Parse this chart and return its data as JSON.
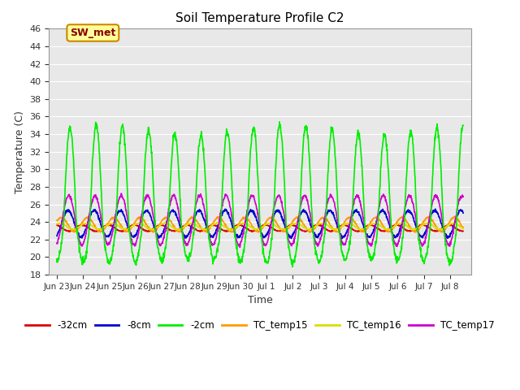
{
  "title": "Soil Temperature Profile C2",
  "xlabel": "Time",
  "ylabel": "Temperature (C)",
  "ylim": [
    18,
    46
  ],
  "yticks": [
    18,
    20,
    22,
    24,
    26,
    28,
    30,
    32,
    34,
    36,
    38,
    40,
    42,
    44,
    46
  ],
  "fig_bg_color": "#ffffff",
  "plot_bg_color": "#e8e8e8",
  "annotation_label": "SW_met",
  "annotation_bg": "#ffff99",
  "annotation_border": "#cc8800",
  "annotation_text_color": "#880000",
  "series": {
    "-32cm": {
      "color": "#dd0000",
      "linewidth": 1.2
    },
    "-8cm": {
      "color": "#0000cc",
      "linewidth": 1.2
    },
    "-2cm": {
      "color": "#00ee00",
      "linewidth": 1.2
    },
    "TC_temp15": {
      "color": "#ff9900",
      "linewidth": 1.2
    },
    "TC_temp16": {
      "color": "#dddd00",
      "linewidth": 1.2
    },
    "TC_temp17": {
      "color": "#cc00cc",
      "linewidth": 1.2
    }
  },
  "num_days": 15.5,
  "ppd": 96,
  "tick_labels": [
    "Jun 23",
    "Jun 24",
    "Jun 25",
    "Jun 26",
    "Jun 27",
    "Jun 28",
    "Jun 29",
    "Jun 30",
    "Jul 1",
    "Jul 2",
    "Jul 3",
    "Jul 4",
    "Jul 5",
    "Jul 6",
    "Jul 7",
    "Jul 8"
  ]
}
